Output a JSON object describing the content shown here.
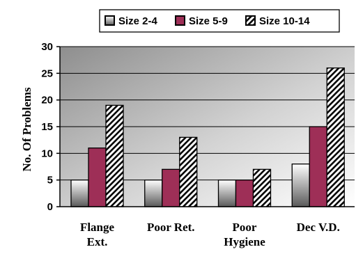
{
  "chart_data": {
    "type": "bar",
    "title": "",
    "xlabel": "",
    "ylabel": "No. Of Problems",
    "ylim": [
      0,
      30
    ],
    "yticks": [
      0,
      5,
      10,
      15,
      20,
      25,
      30
    ],
    "grid": true,
    "legend_position": "top",
    "categories": [
      [
        "Flange",
        "Ext."
      ],
      [
        "Poor Ret."
      ],
      [
        "Poor",
        "Hygiene"
      ],
      [
        "Dec V.D."
      ]
    ],
    "series": [
      {
        "name": "Size 2-4",
        "values": [
          5,
          5,
          5,
          8
        ],
        "fill": "gradient-gray"
      },
      {
        "name": "Size 5-9",
        "values": [
          11,
          7,
          5,
          15
        ],
        "fill": "#9e2f57"
      },
      {
        "name": "Size 10-14",
        "values": [
          19,
          13,
          7,
          26
        ],
        "fill": "diagonal-hatch"
      }
    ]
  }
}
